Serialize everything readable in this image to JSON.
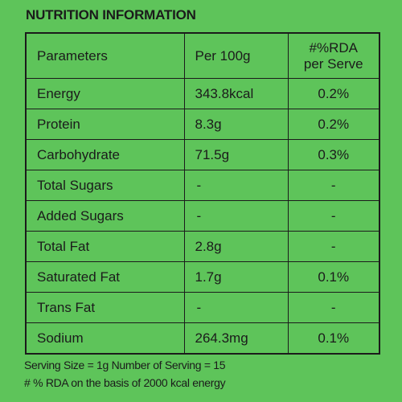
{
  "title": "NUTRITION INFORMATION",
  "headers": {
    "parameters": "Parameters",
    "per100g": "Per 100g",
    "rda_line1": "#%RDA",
    "rda_line2": "per Serve"
  },
  "rows": [
    {
      "parameter": "Energy",
      "per100g": "343.8kcal",
      "rda": "0.2%"
    },
    {
      "parameter": "Protein",
      "per100g": "8.3g",
      "rda": "0.2%"
    },
    {
      "parameter": "Carbohydrate",
      "per100g": "71.5g",
      "rda": "0.3%"
    },
    {
      "parameter": "Total Sugars",
      "per100g": "-",
      "rda": "-"
    },
    {
      "parameter": "Added Sugars",
      "per100g": "-",
      "rda": "-"
    },
    {
      "parameter": "Total Fat",
      "per100g": "2.8g",
      "rda": "-"
    },
    {
      "parameter": "Saturated Fat",
      "per100g": "1.7g",
      "rda": "0.1%"
    },
    {
      "parameter": "Trans Fat",
      "per100g": "-",
      "rda": "-"
    },
    {
      "parameter": "Sodium",
      "per100g": "264.3mg",
      "rda": "0.1%"
    }
  ],
  "footnotes": {
    "serving": "Serving Size = 1g  Number of Serving = 15",
    "rda_basis": "# % RDA on the basis of 2000 kcal energy"
  },
  "colors": {
    "background": "#5ec45a",
    "text": "#1b1b1b"
  }
}
